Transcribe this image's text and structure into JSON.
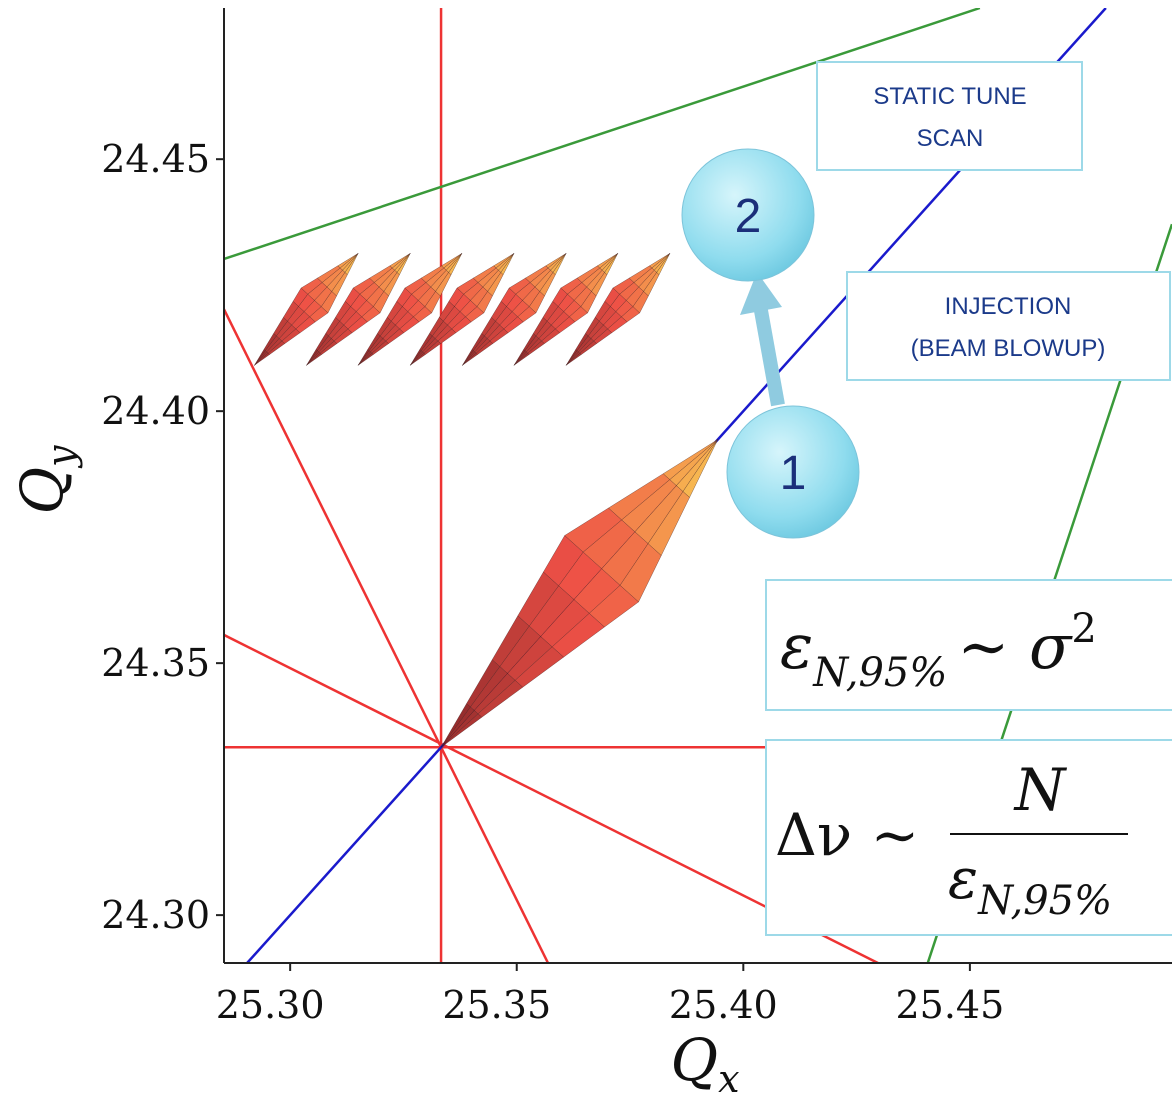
{
  "chart_data": {
    "type": "line",
    "xlim": [
      25.2854,
      25.4946
    ],
    "ylim": [
      24.2905,
      24.48
    ],
    "xticks": [
      {
        "value": 25.3,
        "label": "25.30"
      },
      25.35,
      {
        "value": 25.4,
        "label": "25.40"
      },
      25.45
    ],
    "yticks": [
      {
        "value": 24.3,
        "label": "24.30"
      },
      24.35,
      {
        "value": 24.4,
        "label": "24.40"
      },
      24.45
    ],
    "xlabel": {
      "text": "Q",
      "sub": "x"
    },
    "ylabel": {
      "text": "Q",
      "sub": "y"
    },
    "lines": [
      {
        "color": "#ee3333",
        "x": [
          25.3333,
          25.3333
        ],
        "y": [
          24.2905,
          24.48
        ]
      },
      {
        "color": "#ee3333",
        "x": [
          25.2854,
          25.4946
        ],
        "y": [
          24.3333,
          24.3333
        ]
      },
      {
        "color": "#ee3333",
        "x": [
          25.2854,
          25.3569
        ],
        "y": [
          24.4202,
          24.2905
        ]
      },
      {
        "color": "#ee3333",
        "x": [
          25.2854,
          25.4297
        ],
        "y": [
          24.3556,
          24.2905
        ]
      },
      {
        "color": "#1a1acc",
        "x": [
          25.2905,
          25.48
        ],
        "y": [
          24.2905,
          24.48
        ]
      },
      {
        "color": "#3a9a3a",
        "x": [
          25.2854,
          25.4522
        ],
        "y": [
          24.4302,
          24.48
        ]
      },
      {
        "color": "#3a9a3a",
        "x": [
          25.4407,
          25.4946
        ],
        "y": [
          24.2905,
          24.4371
        ]
      }
    ],
    "footprints": [
      {
        "x": [
          25.3333,
          25.3944
        ],
        "y": [
          24.3333,
          24.3944
        ]
      },
      {
        "x": [
          25.2921,
          25.315
        ],
        "y": [
          24.4091,
          24.4313
        ]
      },
      {
        "x": [
          25.3036,
          25.3265
        ],
        "y": [
          24.4091,
          24.4313
        ]
      },
      {
        "x": [
          25.315,
          25.3379
        ],
        "y": [
          24.4091,
          24.4313
        ]
      },
      {
        "x": [
          25.3265,
          25.3494
        ],
        "y": [
          24.4091,
          24.4313
        ]
      },
      {
        "x": [
          25.338,
          25.3609
        ],
        "y": [
          24.4091,
          24.4313
        ]
      },
      {
        "x": [
          25.3494,
          25.3723
        ],
        "y": [
          24.4091,
          24.4313
        ]
      },
      {
        "x": [
          25.3609,
          25.3838
        ],
        "y": [
          24.4091,
          24.4313
        ]
      }
    ],
    "annotations": [
      {
        "lines": [
          "STATIC TUNE",
          "SCAN"
        ]
      },
      {
        "lines": [
          "INJECTION",
          "(BEAM BLOWUP)"
        ]
      }
    ],
    "markers": [
      "1",
      "2"
    ],
    "formulas": [
      {
        "symbol": "ε",
        "sub": "N,95%",
        "rest": "∼ σ",
        "sup": "2"
      },
      {
        "lhs": "Δν ∼",
        "numerator": "N",
        "symbol": "ε",
        "sub": "N,95%"
      }
    ]
  }
}
